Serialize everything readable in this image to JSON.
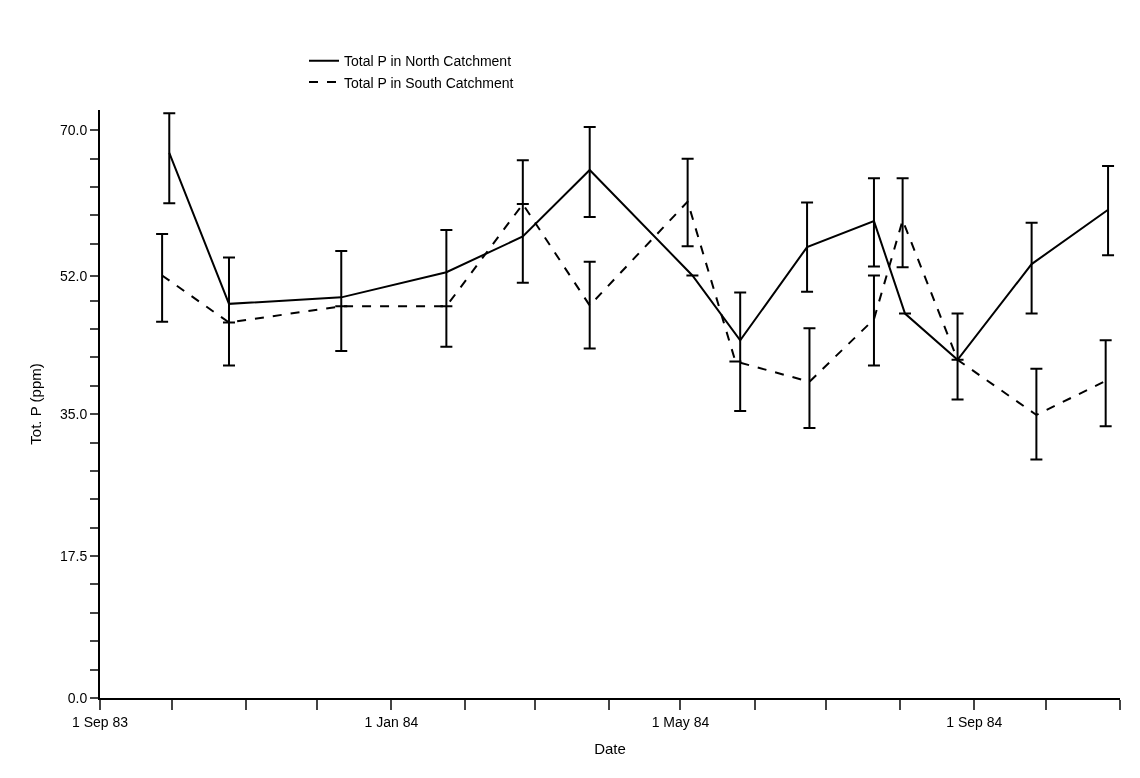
{
  "chart_data": {
    "type": "line",
    "xlabel": "Date",
    "ylabel": "Tot. P (ppm)",
    "legend": "top",
    "marker": "none",
    "xlim": [
      "1983-09-01",
      "1984-11-01"
    ],
    "xticks": [
      {
        "value": "1983-09-01",
        "label": "1 Sep 83"
      },
      {
        "value": "1983-10-01",
        "label": null
      },
      {
        "value": "1983-11-01",
        "label": null
      },
      {
        "value": "1983-12-01",
        "label": null
      },
      {
        "value": "1984-01-01",
        "label": "1 Jan 84"
      },
      {
        "value": "1984-02-01",
        "label": null
      },
      {
        "value": "1984-03-01",
        "label": null
      },
      {
        "value": "1984-04-01",
        "label": null
      },
      {
        "value": "1984-05-01",
        "label": "1 May 84"
      },
      {
        "value": "1984-06-01",
        "label": null
      },
      {
        "value": "1984-07-01",
        "label": null
      },
      {
        "value": "1984-08-01",
        "label": null
      },
      {
        "value": "1984-09-01",
        "label": "1 Sep 84"
      },
      {
        "value": "1984-10-01",
        "label": null
      },
      {
        "value": "1984-11-01",
        "label": null
      }
    ],
    "ylim": [
      0,
      72.5
    ],
    "yticks": [
      {
        "value": 0,
        "label": "0.0"
      },
      {
        "value": 3.5,
        "label": null
      },
      {
        "value": 7,
        "label": null
      },
      {
        "value": 10.5,
        "label": null
      },
      {
        "value": 14,
        "label": null
      },
      {
        "value": 17.5,
        "label": "17.5"
      },
      {
        "value": 21,
        "label": null
      },
      {
        "value": 24.5,
        "label": null
      },
      {
        "value": 28,
        "label": null
      },
      {
        "value": 31.5,
        "label": null
      },
      {
        "value": 35,
        "label": "35.0"
      },
      {
        "value": 38.5,
        "label": null
      },
      {
        "value": 42,
        "label": null
      },
      {
        "value": 45.5,
        "label": null
      },
      {
        "value": 49,
        "label": null
      },
      {
        "value": 52,
        "label": "52.0"
      },
      {
        "value": 56,
        "label": null
      },
      {
        "value": 59.5,
        "label": null
      },
      {
        "value": 63,
        "label": null
      },
      {
        "value": 66.5,
        "label": null
      },
      {
        "value": 70,
        "label": "70.0"
      }
    ],
    "series": [
      {
        "name": "Total P in North Catchment",
        "color": "#000000",
        "line_style": "solid",
        "x": [
          "1983-09-30",
          "1983-10-25",
          "1983-12-11",
          "1984-01-24",
          "1984-02-25",
          "1984-03-24",
          "1984-05-06",
          "1984-05-26",
          "1984-06-23",
          "1984-07-21",
          "1984-08-03",
          "1984-08-25",
          "1984-09-25",
          "1984-10-27"
        ],
        "values": [
          67.2,
          48.6,
          49.4,
          52.5,
          56.9,
          65.1,
          52.1,
          44.1,
          55.6,
          58.8,
          47.4,
          41.7,
          53.5,
          60.2
        ],
        "errors": [
          [
            61.0,
            72.1
          ],
          [
            41.0,
            54.3
          ],
          [
            42.8,
            55.1
          ],
          [
            43.3,
            57.7
          ],
          [
            51.2,
            66.3
          ],
          [
            59.3,
            70.4
          ],
          null,
          [
            35.4,
            50.0
          ],
          [
            50.1,
            61.1
          ],
          [
            53.2,
            64.1
          ],
          null,
          [
            36.8,
            47.4
          ],
          [
            47.4,
            58.6
          ],
          [
            54.6,
            65.6
          ]
        ]
      },
      {
        "name": "Total P in South Catchment",
        "color": "#000000",
        "line_style": "dashed",
        "x": [
          "1983-09-27",
          "1983-10-25",
          "1983-12-11",
          "1984-01-24",
          "1984-02-25",
          "1984-03-24",
          "1984-05-04",
          "1984-05-24",
          "1984-06-24",
          "1984-07-21",
          "1984-08-02",
          "1984-08-25",
          "1984-09-27",
          "1984-10-26"
        ],
        "values": [
          52.1,
          46.3,
          48.3,
          48.3,
          60.9,
          48.4,
          61.2,
          41.5,
          39.0,
          46.7,
          58.9,
          41.7,
          34.9,
          39.1
        ],
        "errors": [
          [
            46.4,
            57.2
          ],
          null,
          null,
          null,
          null,
          [
            43.1,
            53.8
          ],
          [
            55.7,
            66.5
          ],
          null,
          [
            33.3,
            45.6
          ],
          [
            41.0,
            52.1
          ],
          [
            53.1,
            64.1
          ],
          null,
          [
            29.4,
            40.6
          ],
          [
            33.5,
            44.1
          ]
        ]
      }
    ]
  }
}
